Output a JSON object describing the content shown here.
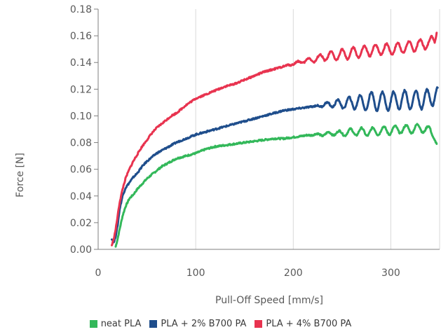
{
  "chart_data": {
    "type": "line",
    "title": "",
    "xlabel": "Pull-Off Speed [mm/s]",
    "ylabel": "Force [N]",
    "xlim": [
      0,
      350
    ],
    "ylim": [
      0,
      0.18
    ],
    "x_ticks": [
      0,
      100,
      200,
      300
    ],
    "x_tick_labels": [
      "0",
      "100",
      "200",
      "300"
    ],
    "y_ticks": [
      0,
      0.02,
      0.04,
      0.06,
      0.08,
      0.1,
      0.12,
      0.14,
      0.16,
      0.18
    ],
    "y_tick_labels": [
      "0.00",
      "0.02",
      "0.04",
      "0.06",
      "0.08",
      "0.10",
      "0.12",
      "0.14",
      "0.16",
      "0.18"
    ],
    "grid": "vertical",
    "legend_position": "bottom",
    "series": [
      {
        "name": "neat PLA",
        "color": "#33b85a",
        "oscillation_start": 210,
        "oscillation_amp": 0.003,
        "points": [
          [
            18,
            0.002
          ],
          [
            20,
            0.008
          ],
          [
            22,
            0.015
          ],
          [
            25,
            0.025
          ],
          [
            28,
            0.032
          ],
          [
            32,
            0.038
          ],
          [
            36,
            0.041
          ],
          [
            40,
            0.045
          ],
          [
            45,
            0.049
          ],
          [
            50,
            0.053
          ],
          [
            55,
            0.056
          ],
          [
            60,
            0.059
          ],
          [
            65,
            0.062
          ],
          [
            70,
            0.064
          ],
          [
            75,
            0.066
          ],
          [
            80,
            0.068
          ],
          [
            90,
            0.07
          ],
          [
            100,
            0.072
          ],
          [
            110,
            0.075
          ],
          [
            120,
            0.077
          ],
          [
            130,
            0.078
          ],
          [
            140,
            0.079
          ],
          [
            150,
            0.08
          ],
          [
            160,
            0.081
          ],
          [
            170,
            0.082
          ],
          [
            180,
            0.083
          ],
          [
            190,
            0.083
          ],
          [
            200,
            0.084
          ],
          [
            210,
            0.085
          ],
          [
            220,
            0.086
          ],
          [
            230,
            0.086
          ],
          [
            240,
            0.087
          ],
          [
            250,
            0.087
          ],
          [
            260,
            0.088
          ],
          [
            270,
            0.088
          ],
          [
            280,
            0.088
          ],
          [
            290,
            0.089
          ],
          [
            300,
            0.089
          ],
          [
            310,
            0.09
          ],
          [
            320,
            0.09
          ],
          [
            330,
            0.091
          ],
          [
            340,
            0.089
          ],
          [
            345,
            0.085
          ],
          [
            347,
            0.079
          ]
        ]
      },
      {
        "name": "PLA + 2% B700 PA",
        "color": "#1f4e8c",
        "oscillation_start": 220,
        "oscillation_amp": 0.007,
        "points": [
          [
            14,
            0.008
          ],
          [
            16,
            0.005
          ],
          [
            18,
            0.01
          ],
          [
            20,
            0.018
          ],
          [
            22,
            0.03
          ],
          [
            25,
            0.04
          ],
          [
            28,
            0.046
          ],
          [
            32,
            0.05
          ],
          [
            36,
            0.054
          ],
          [
            40,
            0.057
          ],
          [
            45,
            0.062
          ],
          [
            50,
            0.066
          ],
          [
            55,
            0.069
          ],
          [
            60,
            0.072
          ],
          [
            70,
            0.076
          ],
          [
            80,
            0.08
          ],
          [
            90,
            0.083
          ],
          [
            100,
            0.086
          ],
          [
            110,
            0.088
          ],
          [
            120,
            0.09
          ],
          [
            130,
            0.092
          ],
          [
            140,
            0.094
          ],
          [
            150,
            0.096
          ],
          [
            160,
            0.098
          ],
          [
            170,
            0.1
          ],
          [
            180,
            0.102
          ],
          [
            190,
            0.104
          ],
          [
            200,
            0.105
          ],
          [
            210,
            0.106
          ],
          [
            220,
            0.107
          ],
          [
            230,
            0.108
          ],
          [
            240,
            0.109
          ],
          [
            250,
            0.109
          ],
          [
            260,
            0.11
          ],
          [
            270,
            0.11
          ],
          [
            280,
            0.111
          ],
          [
            290,
            0.111
          ],
          [
            300,
            0.111
          ],
          [
            310,
            0.112
          ],
          [
            320,
            0.112
          ],
          [
            330,
            0.112
          ],
          [
            340,
            0.113
          ],
          [
            345,
            0.116
          ],
          [
            348,
            0.115
          ]
        ]
      },
      {
        "name": "PLA + 4% B700 PA",
        "color": "#e8334f",
        "oscillation_start": 190,
        "oscillation_amp": 0.004,
        "points": [
          [
            14,
            0.003
          ],
          [
            16,
            0.008
          ],
          [
            18,
            0.015
          ],
          [
            20,
            0.025
          ],
          [
            22,
            0.035
          ],
          [
            25,
            0.045
          ],
          [
            28,
            0.053
          ],
          [
            32,
            0.06
          ],
          [
            36,
            0.066
          ],
          [
            40,
            0.071
          ],
          [
            45,
            0.077
          ],
          [
            50,
            0.082
          ],
          [
            55,
            0.087
          ],
          [
            60,
            0.091
          ],
          [
            65,
            0.094
          ],
          [
            70,
            0.097
          ],
          [
            75,
            0.1
          ],
          [
            80,
            0.102
          ],
          [
            90,
            0.108
          ],
          [
            100,
            0.113
          ],
          [
            110,
            0.116
          ],
          [
            120,
            0.119
          ],
          [
            130,
            0.122
          ],
          [
            140,
            0.124
          ],
          [
            150,
            0.127
          ],
          [
            160,
            0.13
          ],
          [
            170,
            0.133
          ],
          [
            180,
            0.135
          ],
          [
            190,
            0.137
          ],
          [
            200,
            0.139
          ],
          [
            210,
            0.141
          ],
          [
            220,
            0.142
          ],
          [
            230,
            0.144
          ],
          [
            240,
            0.145
          ],
          [
            250,
            0.146
          ],
          [
            260,
            0.147
          ],
          [
            270,
            0.148
          ],
          [
            280,
            0.149
          ],
          [
            290,
            0.15
          ],
          [
            300,
            0.15
          ],
          [
            310,
            0.151
          ],
          [
            320,
            0.152
          ],
          [
            330,
            0.153
          ],
          [
            340,
            0.155
          ],
          [
            345,
            0.157
          ],
          [
            347,
            0.166
          ]
        ]
      }
    ]
  }
}
